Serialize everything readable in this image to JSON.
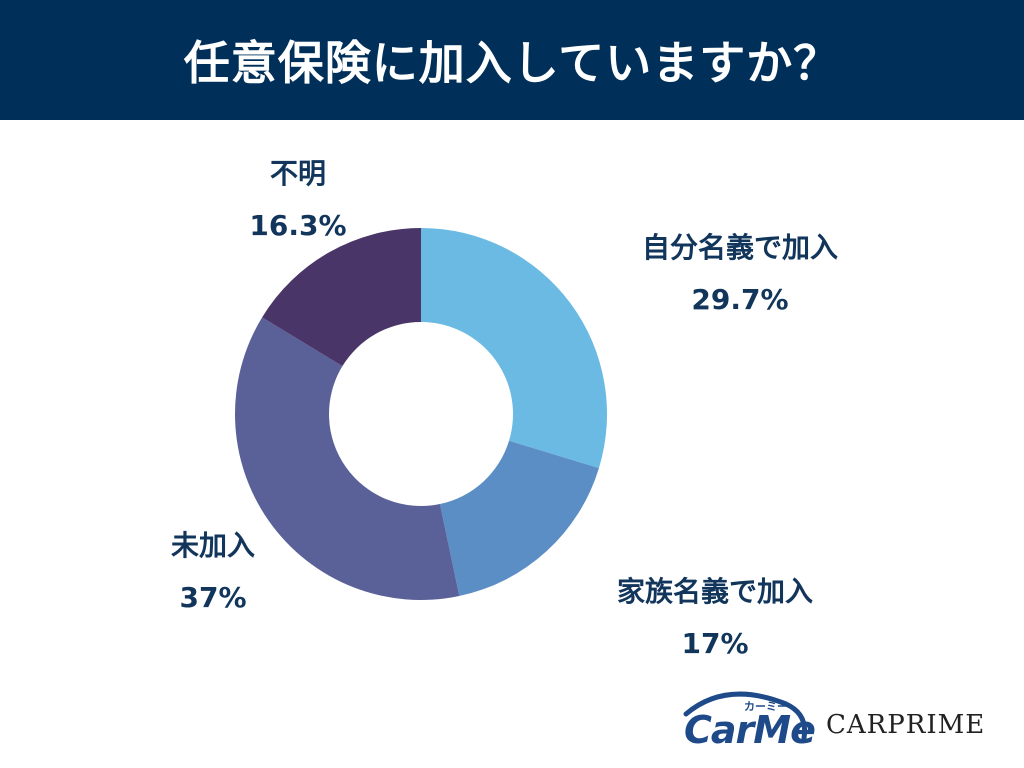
{
  "header": {
    "title": "任意保険に加入していますか？"
  },
  "chart_data": {
    "type": "pie",
    "donut": true,
    "title": "任意保険に加入していますか？",
    "series": [
      {
        "name": "自分名義で加入",
        "value": 29.7,
        "label": "29.7%",
        "color": "#6bbae4"
      },
      {
        "name": "家族名義で加入",
        "value": 17,
        "label": "17%",
        "color": "#5b8ec4"
      },
      {
        "name": "未加入",
        "value": 37,
        "label": "37%",
        "color": "#5a6198"
      },
      {
        "name": "不明",
        "value": 16.3,
        "label": "16.3%",
        "color": "#4a3568"
      }
    ]
  },
  "logos": {
    "carme": "CarMe",
    "carme_kana": "カーミー",
    "carprime": "CARPRIME"
  }
}
